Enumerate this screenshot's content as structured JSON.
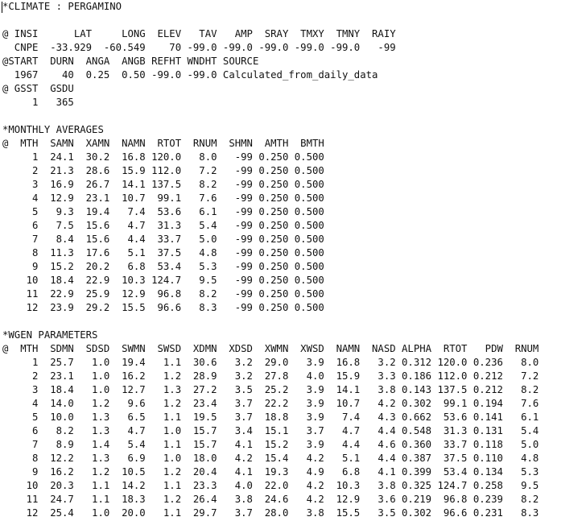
{
  "file_lines": [
    "*CLIMATE : PERGAMINO",
    "",
    "@ INSI      LAT     LONG  ELEV   TAV   AMP  SRAY  TMXY  TMNY  RAIY",
    "  CNPE  -33.929  -60.549    70 -99.0 -99.0 -99.0 -99.0 -99.0   -99",
    "@START  DURN  ANGA  ANGB REFHT WNDHT SOURCE",
    "  1967    40  0.25  0.50 -99.0 -99.0 Calculated_from_daily_data",
    "@ GSST  GSDU",
    "     1   365",
    "",
    "*MONTHLY AVERAGES",
    "@  MTH  SAMN  XAMN  NAMN  RTOT  RNUM  SHMN  AMTH  BMTH",
    "     1  24.1  30.2  16.8 120.0   8.0   -99 0.250 0.500",
    "     2  21.3  28.6  15.9 112.0   7.2   -99 0.250 0.500",
    "     3  16.9  26.7  14.1 137.5   8.2   -99 0.250 0.500",
    "     4  12.9  23.1  10.7  99.1   7.6   -99 0.250 0.500",
    "     5   9.3  19.4   7.4  53.6   6.1   -99 0.250 0.500",
    "     6   7.5  15.6   4.7  31.3   5.4   -99 0.250 0.500",
    "     7   8.4  15.6   4.4  33.7   5.0   -99 0.250 0.500",
    "     8  11.3  17.6   5.1  37.5   4.8   -99 0.250 0.500",
    "     9  15.2  20.2   6.8  53.4   5.3   -99 0.250 0.500",
    "    10  18.4  22.9  10.3 124.7   9.5   -99 0.250 0.500",
    "    11  22.9  25.9  12.9  96.8   8.2   -99 0.250 0.500",
    "    12  23.9  29.2  15.5  96.6   8.3   -99 0.250 0.500",
    "",
    "*WGEN PARAMETERS",
    "@  MTH  SDMN  SDSD  SWMN  SWSD  XDMN  XDSD  XWMN  XWSD  NAMN  NASD ALPHA  RTOT   PDW  RNUM",
    "     1  25.7   1.0  19.4   1.1  30.6   3.2  29.0   3.9  16.8   3.2 0.312 120.0 0.236   8.0",
    "     2  23.1   1.0  16.2   1.2  28.9   3.2  27.8   4.0  15.9   3.3 0.186 112.0 0.212   7.2",
    "     3  18.4   1.0  12.7   1.3  27.2   3.5  25.2   3.9  14.1   3.8 0.143 137.5 0.212   8.2",
    "     4  14.0   1.2   9.6   1.2  23.4   3.7  22.2   3.9  10.7   4.2 0.302  99.1 0.194   7.6",
    "     5  10.0   1.3   6.5   1.1  19.5   3.7  18.8   3.9   7.4   4.3 0.662  53.6 0.141   6.1",
    "     6   8.2   1.3   4.7   1.0  15.7   3.4  15.1   3.7   4.7   4.4 0.548  31.3 0.131   5.4",
    "     7   8.9   1.4   5.4   1.1  15.7   4.1  15.2   3.9   4.4   4.6 0.360  33.7 0.118   5.0",
    "     8  12.2   1.3   6.9   1.0  18.0   4.2  15.4   4.2   5.1   4.4 0.387  37.5 0.110   4.8",
    "     9  16.2   1.2  10.5   1.2  20.4   4.1  19.3   4.9   6.8   4.1 0.399  53.4 0.134   5.3",
    "    10  20.3   1.1  14.2   1.1  23.3   4.0  22.0   4.2  10.3   3.8 0.325 124.7 0.258   9.5",
    "    11  24.7   1.1  18.3   1.2  26.4   3.8  24.6   4.2  12.9   3.6 0.219  96.8 0.239   8.2",
    "    12  25.4   1.0  20.0   1.1  29.7   3.7  28.0   3.8  15.5   3.5 0.302  96.6 0.231   8.3"
  ]
}
